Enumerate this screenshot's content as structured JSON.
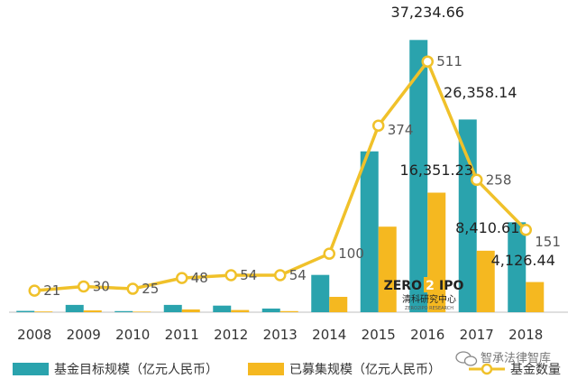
{
  "chart_data": {
    "type": "bar",
    "categories": [
      "2008",
      "2009",
      "2010",
      "2011",
      "2012",
      "2013",
      "2014",
      "2015",
      "2016",
      "2017",
      "2018"
    ],
    "series": [
      {
        "name": "基金目标规模（亿元人民币）",
        "type": "bar",
        "color": "#2aa3ad",
        "values": [
          180,
          1000,
          150,
          1000,
          900,
          500,
          5100,
          22000,
          37234.66,
          26358.14,
          12300
        ]
      },
      {
        "name": "已募集规模（亿元人民币）",
        "type": "bar",
        "color": "#f5b820",
        "values": [
          100,
          250,
          80,
          380,
          300,
          150,
          2100,
          11700,
          16351.23,
          8410.61,
          4126.44
        ]
      },
      {
        "name": "基金数量",
        "type": "line",
        "color": "#f0c12a",
        "values": [
          21,
          30,
          25,
          48,
          54,
          54,
          100,
          374,
          511,
          258,
          151
        ]
      }
    ],
    "bar_labels": {
      "2016": {
        "target": "37,234.66",
        "raised": "16,351.23"
      },
      "2017": {
        "target": "26,358.14",
        "raised": "8,410.61"
      },
      "2018": {
        "raised": "4,126.44"
      }
    },
    "count_labels": [
      "21",
      "30",
      "25",
      "48",
      "54",
      "54",
      "100",
      "374",
      "511",
      "258",
      "151"
    ],
    "bar_ylim": [
      0,
      39000
    ],
    "line_ylim": [
      0,
      550
    ],
    "grid": false,
    "legend_position": "bottom"
  },
  "watermark": {
    "logo_text_left": "ZERO",
    "logo_digit": "2",
    "logo_text_right": "IPO",
    "logo_subtitle": "清科研究中心",
    "logo_small": "ZERO2IPO RESEARCH"
  },
  "wechat_mark": {
    "text": "智承法律智库"
  }
}
